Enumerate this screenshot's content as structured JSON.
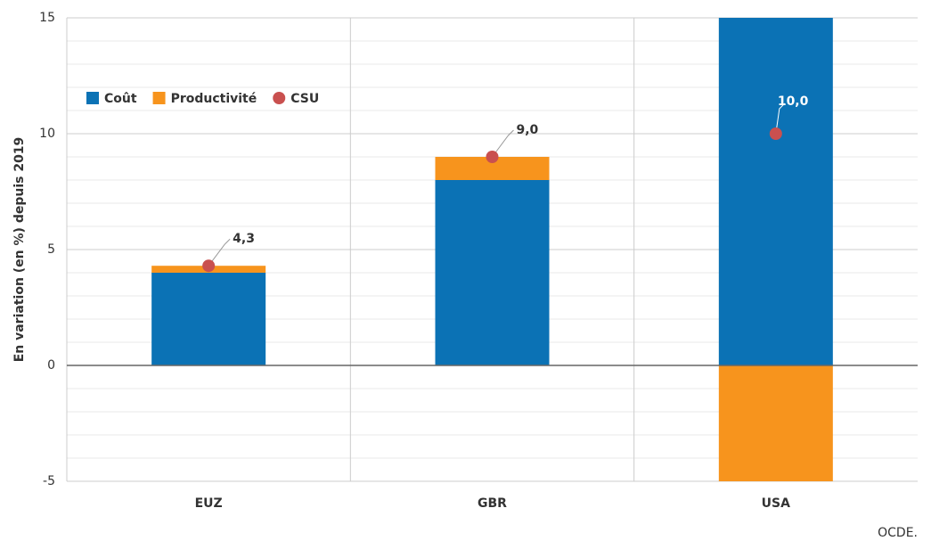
{
  "chart_data": {
    "type": "stacked-bar-dot",
    "y_label": "En variation (en %) depuis 2019",
    "categories": [
      "EUZ",
      "GBR",
      "USA"
    ],
    "series": [
      {
        "name": "Coût",
        "color": "#0b72b5",
        "values": [
          4.0,
          8.0,
          15.2
        ]
      },
      {
        "name": "Productivité",
        "color": "#f7941d",
        "values": [
          0.3,
          1.0,
          -5.2
        ]
      },
      {
        "name": "CSU",
        "color": "#c9504f",
        "kind": "dot",
        "values": [
          4.3,
          9.0,
          10.0
        ],
        "value_labels": [
          "4,3",
          "9,0",
          "10,0"
        ]
      }
    ],
    "ylim": [
      -5,
      15
    ],
    "yticks": [
      -5,
      0,
      5,
      10,
      15
    ],
    "grid": true,
    "source": "OCDE."
  }
}
